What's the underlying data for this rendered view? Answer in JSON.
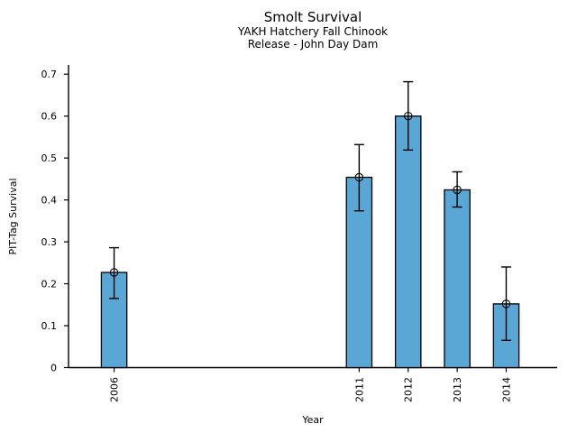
{
  "chart_data": {
    "type": "bar",
    "title": "Smolt Survival",
    "subtitle_lines": [
      "YAKH Hatchery Fall Chinook",
      "Release - John Day Dam"
    ],
    "xlabel": "Year",
    "ylabel": "PIT-Tag Survival",
    "categories": [
      "2006",
      "2011",
      "2012",
      "2013",
      "2014"
    ],
    "x_numeric": [
      2006,
      2011,
      2012,
      2013,
      2014
    ],
    "values": [
      0.227,
      0.454,
      0.6,
      0.424,
      0.152
    ],
    "error_low": [
      0.165,
      0.374,
      0.519,
      0.383,
      0.065
    ],
    "error_high": [
      0.286,
      0.532,
      0.682,
      0.467,
      0.24
    ],
    "yticks": [
      0,
      0.1,
      0.2,
      0.3,
      0.4,
      0.5,
      0.6,
      0.7
    ],
    "ytick_labels": [
      "0",
      "0.1",
      "0.2",
      "0.3",
      "0.4",
      "0.5",
      "0.6",
      "0.7"
    ],
    "ylim": [
      0,
      0.722
    ],
    "xlim": [
      2005.07,
      2015.04
    ],
    "bar_width_years": 0.52,
    "bar_color": "#5AA7D5",
    "bar_edge_color": "#000000",
    "error_color": "#000000",
    "marker": "open-circle",
    "grid": false,
    "legend": "none"
  }
}
